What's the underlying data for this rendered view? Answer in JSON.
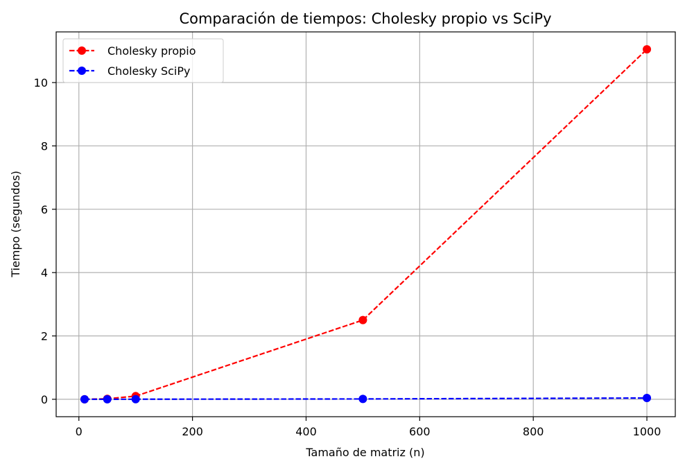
{
  "chart_data": {
    "type": "line",
    "title": "Comparación de tiempos: Cholesky propio vs SciPy",
    "xlabel": "Tamaño de matriz (n)",
    "ylabel": "Tiempo (segundos)",
    "xlim": [
      -40,
      1050
    ],
    "ylim": [
      -0.55,
      11.6
    ],
    "xticks": [
      0,
      200,
      400,
      600,
      800,
      1000
    ],
    "yticks": [
      0,
      2,
      4,
      6,
      8,
      10
    ],
    "grid": true,
    "legend_position": "upper-left",
    "x": [
      10,
      50,
      100,
      500,
      1000
    ],
    "series": [
      {
        "name": "Cholesky propio",
        "color": "#ff0000",
        "linestyle": "dashed",
        "marker": "circle",
        "values": [
          0.0,
          0.015,
          0.1,
          2.5,
          11.05
        ]
      },
      {
        "name": "Cholesky SciPy",
        "color": "#0000ff",
        "linestyle": "dashed",
        "marker": "circle",
        "values": [
          0.0,
          0.0,
          0.002,
          0.01,
          0.04
        ]
      }
    ]
  }
}
